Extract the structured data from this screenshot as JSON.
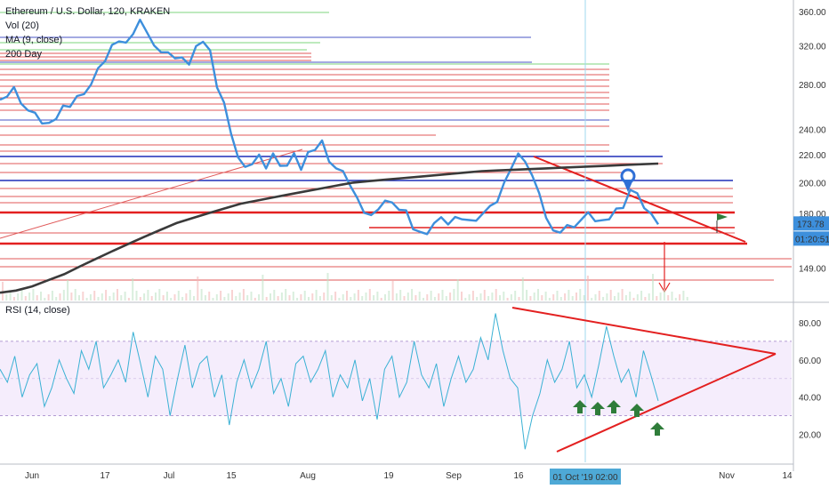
{
  "chart_data": {
    "type": "line",
    "symbol": "ETHUSD",
    "title": "Ethereum / U.S. Dollar, 120, KRAKEN",
    "indicators": [
      "Vol (20)",
      "MA (9, close)",
      "200 Day"
    ],
    "rsi_label": "RSI (14, close)",
    "price_axis": {
      "ticks": [
        149,
        180,
        200,
        220,
        240,
        280,
        320,
        360
      ],
      "scale": "log",
      "range": [
        135,
        370
      ]
    },
    "rsi_axis": {
      "ticks": [
        20,
        40,
        60,
        80
      ],
      "range": [
        5,
        90
      ],
      "band": [
        30,
        70
      ]
    },
    "x_ticks": [
      "Jun",
      "17",
      "Jul",
      "15",
      "Aug",
      "19",
      "Sep",
      "16",
      "Nov",
      "14"
    ],
    "x_cursor_label": "01 Oct '19  02:00",
    "last_price": "173.78",
    "countdown": "01:20:51",
    "series": [
      {
        "kind": "price",
        "values": [
          262,
          270,
          275,
          265,
          255,
          258,
          245,
          242,
          250,
          258,
          262,
          268,
          275,
          280,
          292,
          305,
          318,
          328,
          322,
          338,
          350,
          330,
          322,
          310,
          316,
          305,
          312,
          300,
          315,
          326,
          312,
          280,
          262,
          240,
          218,
          208,
          214,
          218,
          212,
          220,
          215,
          212,
          218,
          210,
          220,
          226,
          230,
          218,
          210,
          205,
          199,
          188,
          182,
          178,
          185,
          188,
          184,
          183,
          180,
          172,
          168,
          170,
          174,
          175,
          174,
          176,
          178,
          175,
          178,
          180,
          182,
          188,
          198,
          212,
          220,
          218,
          205,
          190,
          178,
          168,
          170,
          172,
          174,
          176,
          178,
          176,
          174,
          178,
          182,
          186,
          195,
          190,
          184,
          178,
          175
        ]
      },
      {
        "kind": "ma200",
        "name": "200 Day",
        "values": [
          137,
          138,
          140,
          143,
          146,
          150,
          154,
          158,
          162,
          166,
          170,
          174,
          177,
          180,
          183,
          186,
          188,
          190,
          192,
          194,
          196,
          198,
          200,
          201,
          202,
          203,
          204,
          205,
          206,
          207,
          208,
          208.5,
          209,
          209.5,
          210,
          210.5,
          211,
          211.5,
          212,
          212.5,
          213,
          213.5
        ]
      },
      {
        "kind": "rsi",
        "values": [
          55,
          48,
          62,
          40,
          52,
          58,
          35,
          45,
          60,
          50,
          42,
          65,
          55,
          70,
          45,
          52,
          60,
          48,
          75,
          58,
          40,
          62,
          55,
          30,
          50,
          68,
          45,
          58,
          62,
          40,
          52,
          25,
          48,
          60,
          45,
          55,
          70,
          42,
          50,
          35,
          58,
          62,
          48,
          55,
          65,
          40,
          52,
          45,
          60,
          38,
          50,
          28,
          55,
          62,
          40,
          48,
          70,
          52,
          45,
          58,
          35,
          50,
          62,
          48,
          55,
          72,
          60,
          85,
          65,
          50,
          45,
          12,
          30,
          42,
          60,
          48,
          55,
          70,
          45,
          52,
          40,
          58,
          78,
          62,
          48,
          55,
          40,
          65,
          52,
          38
        ]
      }
    ],
    "legend": "top-left"
  }
}
